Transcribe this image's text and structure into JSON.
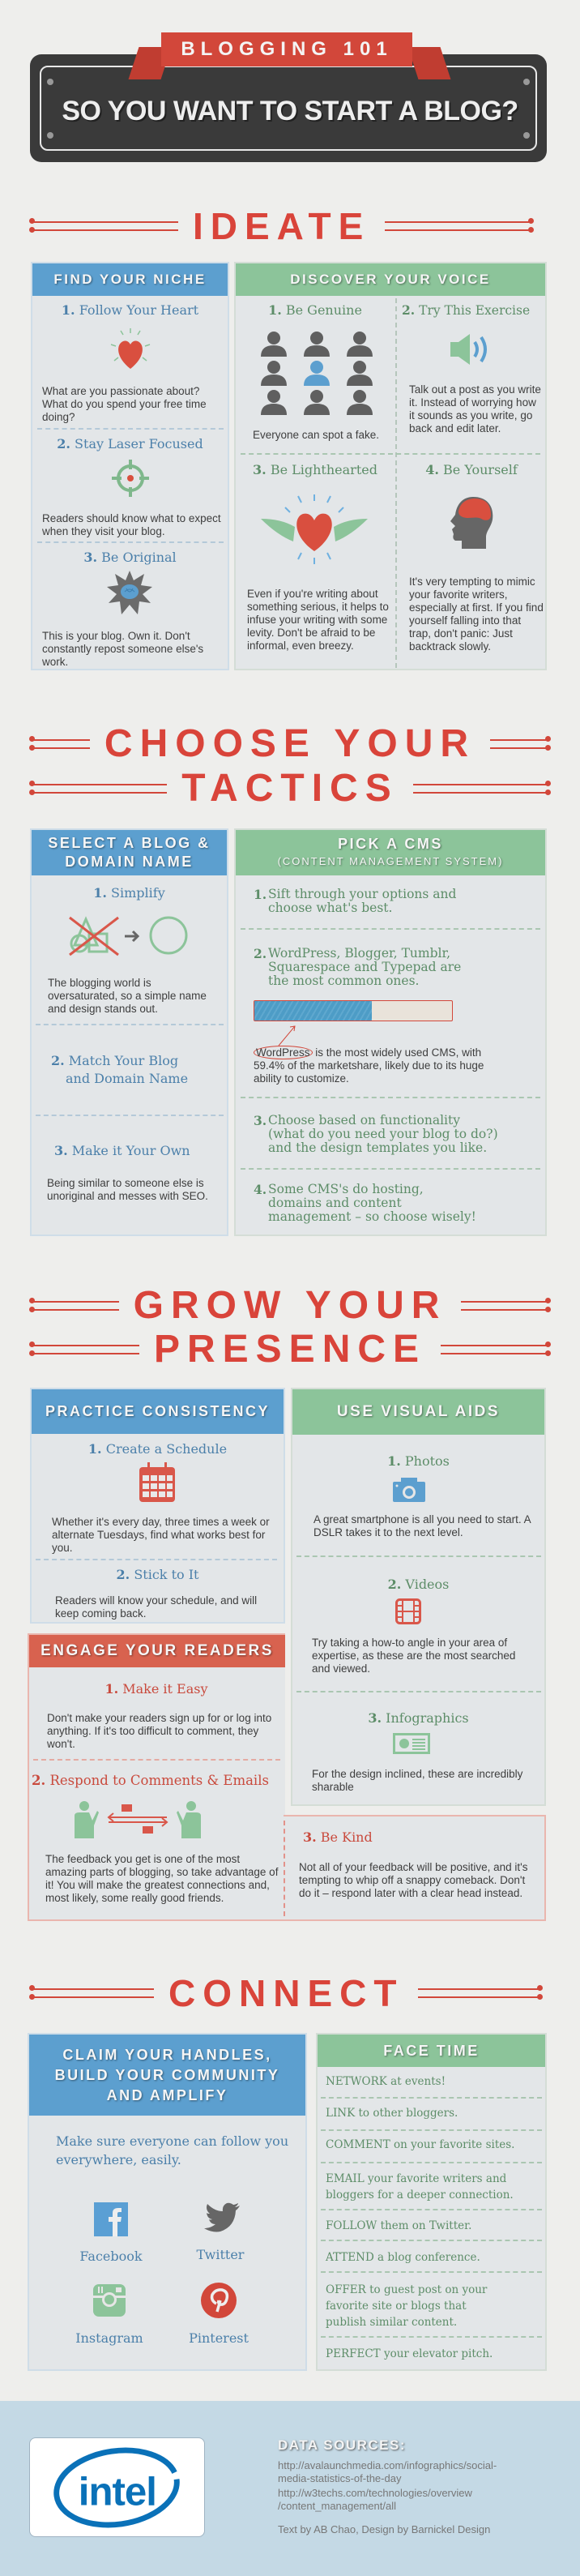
{
  "header": {
    "ribbon": "BLOGGING 101",
    "title": "SO YOU WANT TO START A BLOG?"
  },
  "sections": {
    "ideate": "IDEATE",
    "tactics_line1": "CHOOSE YOUR",
    "tactics_line2": "TACTICS",
    "grow_line1": "GROW YOUR",
    "grow_line2": "PRESENCE",
    "connect": "CONNECT"
  },
  "ideate": {
    "niche": {
      "title": "FIND YOUR NICHE",
      "items": [
        {
          "num": "1.",
          "title": "Follow Your Heart",
          "text": "What are you passionate about? What do you spend your free time doing?",
          "icon": "heart-icon"
        },
        {
          "num": "2.",
          "title": "Stay Laser Focused",
          "text": "Readers should know what to expect when they visit your blog.",
          "icon": "target-icon"
        },
        {
          "num": "3.",
          "title": "Be Original",
          "text": "This is your blog. Own it. Don't constantly repost someone else's work.",
          "icon": "brain-burst-icon"
        }
      ]
    },
    "voice": {
      "title": "DISCOVER YOUR VOICE",
      "items": [
        {
          "num": "1.",
          "title": "Be Genuine",
          "text": "Everyone can spot a fake.",
          "icon": "people-grid-icon"
        },
        {
          "num": "2.",
          "title": "Try This Exercise",
          "text": "Talk out a post as you write it. Instead of worrying how it sounds as you write, go back and edit later.",
          "icon": "speaker-icon"
        },
        {
          "num": "3.",
          "title": "Be Lighthearted",
          "text": "Even if you're writing about something serious, it helps to infuse your writing with some levity. Don't be afraid to be informal, even breezy.",
          "icon": "winged-heart-icon"
        },
        {
          "num": "4.",
          "title": "Be Yourself",
          "text": "It's very tempting to mimic your favorite writers, especially at first. If you find yourself falling into that trap, don't panic: Just backtrack slowly.",
          "icon": "head-brain-icon"
        }
      ]
    }
  },
  "tactics": {
    "domain": {
      "title_line1": "SELECT A BLOG &",
      "title_line2": "DOMAIN NAME",
      "items": [
        {
          "num": "1.",
          "title": "Simplify",
          "text": "The blogging world is oversaturated, so a simple name and design stands out.",
          "icon": "simplify-shapes-icon"
        },
        {
          "num": "2.",
          "title_line1": "Match Your Blog",
          "title_line2": "and Domain Name"
        },
        {
          "num": "3.",
          "title": "Make it Your Own",
          "text": "Being similar to someone else is unoriginal and messes with SEO."
        }
      ]
    },
    "cms": {
      "title": "PICK A CMS",
      "subtitle": "(CONTENT MANAGEMENT SYSTEM)",
      "items": [
        {
          "num": "1.",
          "lines": [
            "Sift through your options and",
            "choose what's best."
          ]
        },
        {
          "num": "2.",
          "lines": [
            "WordPress, Blogger, Tumblr,",
            "Squarespace and Typepad are",
            "the most common ones."
          ]
        },
        {
          "num": "3.",
          "lines": [
            "Choose based on functionality",
            "(what do you need your blog to do?)",
            "and the design templates you like."
          ]
        },
        {
          "num": "4.",
          "lines": [
            "Some CMS's do hosting,",
            "domains and content",
            "management – so choose wisely!"
          ]
        }
      ],
      "marketshare_percent": 59.4,
      "caption_highlight": "WordPress",
      "caption_rest": " is the most widely used CMS, with 59.4% of the marketshare, likely due to its huge ability to customize.",
      "bar_color": "#4d9cc6"
    }
  },
  "grow": {
    "consistency": {
      "title": "PRACTICE CONSISTENCY",
      "items": [
        {
          "num": "1.",
          "title": "Create a Schedule",
          "text": "Whether it's every day, three times a week or alternate Tuesdays, find what works best for you.",
          "icon": "calendar-icon"
        },
        {
          "num": "2.",
          "title": "Stick to It",
          "text": "Readers will know your schedule, and will keep coming back."
        }
      ]
    },
    "visual": {
      "title": "USE VISUAL AIDS",
      "items": [
        {
          "num": "1.",
          "title": "Photos",
          "text": "A great smartphone is all you need to start. A DSLR takes it to the next level.",
          "icon": "camera-icon"
        },
        {
          "num": "2.",
          "title": "Videos",
          "text": "Try taking a how-to angle in your area of expertise, as these are the most searched and viewed.",
          "icon": "film-icon"
        },
        {
          "num": "3.",
          "title": "Infographics",
          "text": "For the design inclined, these are incredibly sharable",
          "icon": "infographic-icon"
        }
      ]
    },
    "engage": {
      "title": "ENGAGE YOUR READERS",
      "items": [
        {
          "num": "1.",
          "title": "Make it Easy",
          "text": "Don't make your readers sign up for or log into anything. If it's too difficult to comment, they won't."
        },
        {
          "num": "2.",
          "title": "Respond to Comments & Emails",
          "text": "The feedback you get is one of the most amazing parts of blogging, so take advantage of it! You will make the greatest connections and, most likely, some really good friends.",
          "icon": "email-exchange-icon"
        },
        {
          "num": "3.",
          "title": "Be Kind",
          "text": "Not all of your feedback will be positive, and it's tempting to whip off a snappy comeback. Don't do it – respond later with a clear head instead."
        }
      ]
    }
  },
  "connect": {
    "handles": {
      "title_lines": [
        "CLAIM YOUR HANDLES,",
        "BUILD YOUR COMMUNITY",
        "AND AMPLIFY"
      ],
      "text": "Make sure everyone can follow you everywhere, easily.",
      "networks": [
        {
          "label": "Facebook",
          "icon": "facebook-icon",
          "color": "#5a9fd4"
        },
        {
          "label": "Twitter",
          "icon": "twitter-icon",
          "color": "#666666"
        },
        {
          "label": "Instagram",
          "icon": "instagram-icon",
          "color": "#8cc49a"
        },
        {
          "label": "Pinterest",
          "icon": "pinterest-icon",
          "color": "#d2473a"
        }
      ]
    },
    "facetime": {
      "title": "FACE TIME",
      "items": [
        [
          "NETWORK at events!"
        ],
        [
          "LINK to other bloggers."
        ],
        [
          "COMMENT on your favorite sites."
        ],
        [
          "EMAIL your favorite writers and",
          "bloggers for a deeper connection."
        ],
        [
          "FOLLOW them on Twitter."
        ],
        [
          "ATTEND a blog conference."
        ],
        [
          "OFFER to guest post on your",
          "favorite site or blogs that",
          "publish similar content."
        ],
        [
          "PERFECT your elevator pitch."
        ]
      ]
    }
  },
  "footer": {
    "logo": "intel",
    "sources_title": "DATA SOURCES:",
    "sources": [
      [
        "http://avalaunchmedia.com/infographics/social-",
        "media-statistics-of-the-day"
      ],
      [
        "http://w3techs.com/technologies/overview",
        "/content_management/all"
      ]
    ],
    "credits": "Text by AB Chao,  Design by Barnickel Design"
  },
  "colors": {
    "red": "#d2473a",
    "blue": "#5c9fcf",
    "green": "#8cc49a",
    "dark": "#3a3a3a",
    "footer": "#c4d9e5"
  }
}
